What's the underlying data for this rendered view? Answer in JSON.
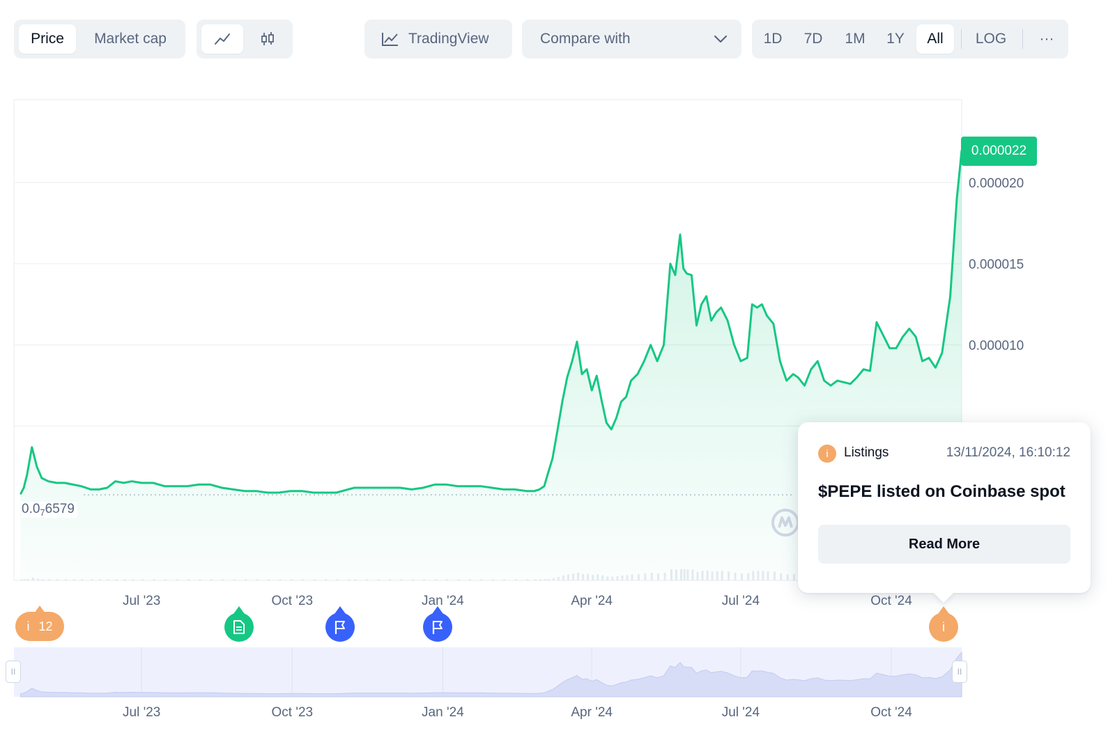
{
  "toolbar": {
    "view_tabs": [
      {
        "label": "Price",
        "active": true
      },
      {
        "label": "Market cap",
        "active": false
      }
    ],
    "chart_type": [
      {
        "icon": "line-chart-icon",
        "active": true
      },
      {
        "icon": "candlestick-icon",
        "active": false
      }
    ],
    "tradingview_label": "TradingView",
    "tradingview_icon": "chart-icon",
    "compare_label": "Compare with",
    "compare_icon": "chevron-down-icon",
    "ranges": [
      {
        "label": "1D",
        "active": false
      },
      {
        "label": "7D",
        "active": false
      },
      {
        "label": "1M",
        "active": false
      },
      {
        "label": "1Y",
        "active": false
      },
      {
        "label": "All",
        "active": true
      }
    ],
    "log_label": "LOG",
    "more_label": "···"
  },
  "chart_data": {
    "type": "area",
    "title": "",
    "xlabel": "",
    "ylabel": "",
    "ylim": [
      2.5e-06,
      2.7e-05
    ],
    "yticks": [
      "0.000020",
      "0.000015",
      "0.000010"
    ],
    "xticks": [
      "Jul '23",
      "Oct '23",
      "Jan '24",
      "Apr '24",
      "Jul '24",
      "Oct '24"
    ],
    "current_price_label": "0.000022",
    "baseline_label": {
      "prefix": "0.0",
      "subscript": "7",
      "suffix": "6579"
    },
    "baseline_value": 7.6579e-07,
    "line_color": "#16c784",
    "grid": true,
    "series": [
      {
        "x": [
          "2023-04-18",
          "2023-04-20",
          "2023-04-22",
          "2023-04-25",
          "2023-04-28",
          "2023-05-01",
          "2023-05-05",
          "2023-05-10",
          "2023-05-15",
          "2023-05-20",
          "2023-05-25",
          "2023-05-31",
          "2023-06-05",
          "2023-06-10",
          "2023-06-15",
          "2023-06-20",
          "2023-06-25",
          "2023-07-01",
          "2023-07-08",
          "2023-07-15",
          "2023-07-22",
          "2023-07-29",
          "2023-08-05",
          "2023-08-12",
          "2023-08-19",
          "2023-08-26",
          "2023-09-02",
          "2023-09-09",
          "2023-09-16",
          "2023-09-23",
          "2023-09-30",
          "2023-10-07",
          "2023-10-14",
          "2023-10-21",
          "2023-10-28",
          "2023-11-04",
          "2023-11-08",
          "2023-11-15",
          "2023-11-22",
          "2023-11-29",
          "2023-12-06",
          "2023-12-13",
          "2023-12-20",
          "2023-12-27",
          "2024-01-03",
          "2024-01-10",
          "2024-01-17",
          "2024-01-24",
          "2024-01-31",
          "2024-02-07",
          "2024-02-14",
          "2024-02-21",
          "2024-02-26",
          "2024-02-29",
          "2024-03-03",
          "2024-03-05",
          "2024-03-08",
          "2024-03-11",
          "2024-03-14",
          "2024-03-17",
          "2024-03-20",
          "2024-03-23",
          "2024-03-26",
          "2024-03-29",
          "2024-04-01",
          "2024-04-04",
          "2024-04-07",
          "2024-04-10",
          "2024-04-13",
          "2024-04-16",
          "2024-04-19",
          "2024-04-22",
          "2024-04-25",
          "2024-04-29",
          "2024-05-03",
          "2024-05-07",
          "2024-05-11",
          "2024-05-15",
          "2024-05-19",
          "2024-05-22",
          "2024-05-25",
          "2024-05-27",
          "2024-05-29",
          "2024-06-01",
          "2024-06-04",
          "2024-06-07",
          "2024-06-10",
          "2024-06-13",
          "2024-06-16",
          "2024-06-19",
          "2024-06-23",
          "2024-06-27",
          "2024-07-01",
          "2024-07-05",
          "2024-07-08",
          "2024-07-11",
          "2024-07-14",
          "2024-07-17",
          "2024-07-21",
          "2024-07-25",
          "2024-07-29",
          "2024-08-02",
          "2024-08-05",
          "2024-08-09",
          "2024-08-13",
          "2024-08-17",
          "2024-08-21",
          "2024-08-25",
          "2024-08-29",
          "2024-09-02",
          "2024-09-06",
          "2024-09-10",
          "2024-09-14",
          "2024-09-18",
          "2024-09-22",
          "2024-09-26",
          "2024-09-30",
          "2024-10-04",
          "2024-10-08",
          "2024-10-12",
          "2024-10-16",
          "2024-10-20",
          "2024-10-24",
          "2024-10-28",
          "2024-11-01",
          "2024-11-04",
          "2024-11-06",
          "2024-11-08",
          "2024-11-10",
          "2024-11-12",
          "2024-11-13"
        ],
        "y": [
          8e-07,
          1.2e-06,
          2e-06,
          3.7e-06,
          2.5e-06,
          1.8e-06,
          1.6e-06,
          1.5e-06,
          1.5e-06,
          1.4e-06,
          1.3e-06,
          1.1e-06,
          1.1e-06,
          1.2e-06,
          1.6e-06,
          1.5e-06,
          1.6e-06,
          1.5e-06,
          1.5e-06,
          1.3e-06,
          1.3e-06,
          1.3e-06,
          1.4e-06,
          1.4e-06,
          1.2e-06,
          1.1e-06,
          1e-06,
          1e-06,
          9e-07,
          9e-07,
          1e-06,
          1e-06,
          9e-07,
          9e-07,
          9e-07,
          1.1e-06,
          1.2e-06,
          1.2e-06,
          1.2e-06,
          1.2e-06,
          1.2e-06,
          1.1e-06,
          1.2e-06,
          1.4e-06,
          1.4e-06,
          1.3e-06,
          1.3e-06,
          1.3e-06,
          1.2e-06,
          1.1e-06,
          1.1e-06,
          1e-06,
          1e-06,
          1.1e-06,
          1.3e-06,
          2e-06,
          3e-06,
          4.7e-06,
          6.5e-06,
          8e-06,
          9e-06,
          1.02e-05,
          8.2e-06,
          8.5e-06,
          7.2e-06,
          8.1e-06,
          6.6e-06,
          5.2e-06,
          4.8e-06,
          5.5e-06,
          6.5e-06,
          6.8e-06,
          7.8e-06,
          8.2e-06,
          9e-06,
          1e-05,
          9e-06,
          1e-05,
          1.5e-05,
          1.43e-05,
          1.68e-05,
          1.47e-05,
          1.44e-05,
          1.43e-05,
          1.12e-05,
          1.25e-05,
          1.3e-05,
          1.15e-05,
          1.2e-05,
          1.23e-05,
          1.15e-05,
          1e-05,
          9e-06,
          9.2e-06,
          1.25e-05,
          1.23e-05,
          1.25e-05,
          1.18e-05,
          1.13e-05,
          9e-06,
          7.8e-06,
          8.2e-06,
          8e-06,
          7.5e-06,
          8.5e-06,
          9e-06,
          7.8e-06,
          7.5e-06,
          7.8e-06,
          7.7e-06,
          7.6e-06,
          8e-06,
          8.5e-06,
          8.4e-06,
          1.14e-05,
          1.06e-05,
          9.8e-06,
          9.8e-06,
          1.05e-05,
          1.1e-05,
          1.05e-05,
          9e-06,
          9.2e-06,
          8.6e-06,
          9.5e-06,
          1.16e-05,
          1.3e-05,
          1.6e-05,
          1.9e-05,
          2.1e-05,
          2.2e-05
        ]
      }
    ],
    "volume_note": "light gray volume bars along bottom"
  },
  "events": [
    {
      "date": "2023-04-20",
      "kind": "info",
      "label": "i",
      "count": "12",
      "color": "#f4a968"
    },
    {
      "date": "2023-09-30",
      "kind": "document",
      "icon": "document-icon",
      "color": "#16c784"
    },
    {
      "date": "2023-11-29",
      "kind": "flag",
      "icon": "flag-icon",
      "color": "#3861fb"
    },
    {
      "date": "2024-01-04",
      "kind": "flag",
      "icon": "flag-icon",
      "color": "#3861fb"
    },
    {
      "date": "2024-11-13",
      "kind": "info",
      "label": "i",
      "color": "#f4a968"
    }
  ],
  "tooltip": {
    "icon_label": "i",
    "category": "Listings",
    "timestamp": "13/11/2024, 16:10:12",
    "title": "$PEPE listed on Coinbase spot",
    "button_label": "Read More"
  },
  "navigator": {
    "xticks": [
      "Jul '23",
      "Oct '23",
      "Jan '24",
      "Apr '24",
      "Jul '24",
      "Oct '24"
    ],
    "handle_label": "II"
  },
  "watermark_icon": "coinmarketcap-logo-icon"
}
